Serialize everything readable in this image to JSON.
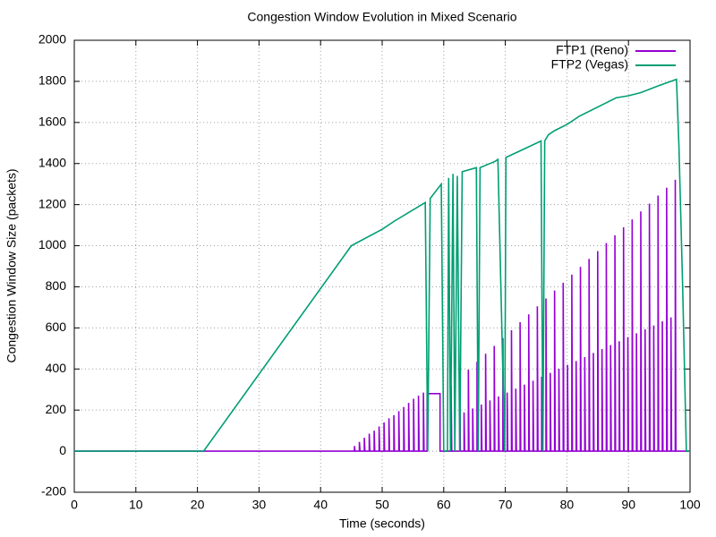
{
  "chart_data": {
    "type": "line",
    "title": "Congestion Window Evolution in Mixed Scenario",
    "x_label": "Time (seconds)",
    "y_label": "Congestion Window Size (packets)",
    "xlim": [
      0,
      100
    ],
    "ylim": [
      -200,
      2000
    ],
    "xticks": [
      0,
      10,
      20,
      30,
      40,
      50,
      60,
      70,
      80,
      90,
      100
    ],
    "yticks": [
      -200,
      0,
      200,
      400,
      600,
      800,
      1000,
      1200,
      1400,
      1600,
      1800,
      2000
    ],
    "grid": true,
    "legend": "top-right",
    "series": [
      {
        "name": "FTP1 (Reno)",
        "color": "#9400d3",
        "x": [
          0,
          45.5,
          45.5,
          45.6,
          46.3,
          46.3,
          46.4,
          47.1,
          47.1,
          47.2,
          47.9,
          47.9,
          48.0,
          48.7,
          48.7,
          48.8,
          49.5,
          49.5,
          49.6,
          50.3,
          50.3,
          50.4,
          51.1,
          51.1,
          51.2,
          51.9,
          51.9,
          52.0,
          52.7,
          52.7,
          52.8,
          53.5,
          53.5,
          53.6,
          54.3,
          54.3,
          54.4,
          55.1,
          55.1,
          55.2,
          55.9,
          55.9,
          56.0,
          56.7,
          56.7,
          56.8,
          57.3,
          57.3,
          59.4,
          59.4,
          61.2,
          61.2,
          61.3,
          62.6,
          62.6,
          62.7,
          63.3,
          63.3,
          63.4,
          64.0,
          64.0,
          64.1,
          64.7,
          64.7,
          64.8,
          65.4,
          65.4,
          65.5,
          66.1,
          66.1,
          66.2,
          66.8,
          66.8,
          66.9,
          67.5,
          67.5,
          67.6,
          68.2,
          68.2,
          68.3,
          68.9,
          68.9,
          69.0,
          69.6,
          69.6,
          69.7,
          70.3,
          70.3,
          70.4,
          71.0,
          71.0,
          71.1,
          71.7,
          71.7,
          71.8,
          72.4,
          72.4,
          72.5,
          73.1,
          73.1,
          73.2,
          73.8,
          73.8,
          73.9,
          74.5,
          74.5,
          74.6,
          75.2,
          75.2,
          75.3,
          75.9,
          75.9,
          76.0,
          76.6,
          76.6,
          76.7,
          77.3,
          77.3,
          77.4,
          78.0,
          78.0,
          78.1,
          78.7,
          78.7,
          78.8,
          79.4,
          79.4,
          79.5,
          80.1,
          80.1,
          80.2,
          80.8,
          80.8,
          80.9,
          81.5,
          81.5,
          81.6,
          82.2,
          82.2,
          82.3,
          82.9,
          82.9,
          83.0,
          83.6,
          83.6,
          83.7,
          84.3,
          84.3,
          84.4,
          85.0,
          85.0,
          85.1,
          85.7,
          85.7,
          85.8,
          86.4,
          86.4,
          86.5,
          87.1,
          87.1,
          87.2,
          87.8,
          87.8,
          87.9,
          88.5,
          88.5,
          88.6,
          89.2,
          89.2,
          89.3,
          89.9,
          89.9,
          90.0,
          90.6,
          90.6,
          90.7,
          91.3,
          91.3,
          91.4,
          92.0,
          92.0,
          92.1,
          92.7,
          92.7,
          92.8,
          93.4,
          93.4,
          93.5,
          94.1,
          94.1,
          94.2,
          94.8,
          94.8,
          94.9,
          95.5,
          95.5,
          95.6,
          96.2,
          96.2,
          96.3,
          96.9,
          96.9,
          97.0,
          97.6,
          97.6,
          97.7,
          100
        ],
        "values": [
          0,
          0,
          25,
          0,
          0,
          45,
          0,
          0,
          65,
          0,
          0,
          85,
          0,
          0,
          100,
          0,
          0,
          120,
          0,
          0,
          140,
          0,
          0,
          160,
          0,
          0,
          175,
          0,
          0,
          195,
          0,
          0,
          215,
          0,
          0,
          235,
          0,
          0,
          255,
          0,
          0,
          270,
          0,
          0,
          285,
          0,
          0,
          280,
          280,
          0,
          0,
          320,
          0,
          0,
          358,
          0,
          0,
          189,
          0,
          0,
          397,
          0,
          0,
          208,
          0,
          0,
          435,
          0,
          0,
          227,
          0,
          0,
          474,
          0,
          0,
          247,
          0,
          0,
          512,
          0,
          0,
          266,
          0,
          0,
          551,
          0,
          0,
          285,
          0,
          0,
          589,
          0,
          0,
          304,
          0,
          0,
          628,
          0,
          0,
          324,
          0,
          0,
          666,
          0,
          0,
          343,
          0,
          0,
          705,
          0,
          0,
          362,
          0,
          0,
          743,
          0,
          0,
          381,
          0,
          0,
          782,
          0,
          0,
          401,
          0,
          0,
          820,
          0,
          0,
          420,
          0,
          0,
          859,
          0,
          0,
          439,
          0,
          0,
          897,
          0,
          0,
          458,
          0,
          0,
          936,
          0,
          0,
          478,
          0,
          0,
          974,
          0,
          0,
          497,
          0,
          0,
          1013,
          0,
          0,
          516,
          0,
          0,
          1051,
          0,
          0,
          535,
          0,
          0,
          1090,
          0,
          0,
          555,
          0,
          0,
          1128,
          0,
          0,
          574,
          0,
          0,
          1167,
          0,
          0,
          593,
          0,
          0,
          1205,
          0,
          0,
          612,
          0,
          0,
          1244,
          0,
          0,
          632,
          0,
          0,
          1282,
          0,
          0,
          651,
          0,
          0,
          1321,
          0,
          0
        ]
      },
      {
        "name": "FTP2 (Vegas)",
        "color": "#009e73",
        "x": [
          0,
          21,
          45,
          50,
          52,
          57,
          57.4,
          57.8,
          59.6,
          60,
          60.6,
          60.8,
          61.1,
          61.5,
          61.8,
          62.2,
          62.6,
          63,
          65.3,
          65.6,
          65.9,
          68.3,
          68.8,
          69.9,
          70.1,
          73,
          75.8,
          76.1,
          76.4,
          77,
          78,
          80,
          82,
          86,
          88,
          90,
          92,
          95,
          97.8,
          98.2,
          98.8,
          99.4,
          100
        ],
        "values": [
          0,
          0,
          1000,
          1080,
          1120,
          1210,
          0,
          1230,
          1300,
          0,
          0,
          1330,
          0,
          1350,
          0,
          1340,
          0,
          1360,
          1380,
          0,
          1380,
          1410,
          1420,
          0,
          1430,
          1470,
          1510,
          0,
          1510,
          1540,
          1560,
          1590,
          1630,
          1690,
          1720,
          1730,
          1745,
          1780,
          1810,
          1480,
          800,
          0,
          0
        ]
      }
    ]
  }
}
